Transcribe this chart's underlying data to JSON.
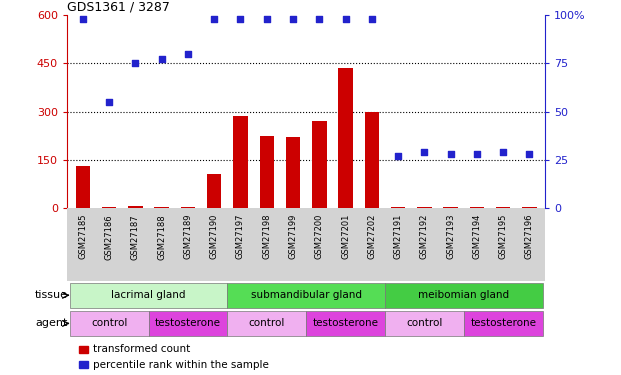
{
  "title": "GDS1361 / 3287",
  "samples": [
    "GSM27185",
    "GSM27186",
    "GSM27187",
    "GSM27188",
    "GSM27189",
    "GSM27190",
    "GSM27197",
    "GSM27198",
    "GSM27199",
    "GSM27200",
    "GSM27201",
    "GSM27202",
    "GSM27191",
    "GSM27192",
    "GSM27193",
    "GSM27194",
    "GSM27195",
    "GSM27196"
  ],
  "bar_values": [
    130,
    5,
    8,
    3,
    3,
    105,
    285,
    225,
    220,
    270,
    435,
    300,
    5,
    5,
    5,
    5,
    5,
    5
  ],
  "scatter_values": [
    98,
    55,
    75,
    77,
    80,
    98,
    98,
    98,
    98,
    98,
    98,
    98,
    27,
    29,
    28,
    28,
    29,
    28
  ],
  "bar_color": "#cc0000",
  "scatter_color": "#2222cc",
  "ylim_left": [
    0,
    600
  ],
  "ylim_right": [
    0,
    100
  ],
  "yticks_left": [
    0,
    150,
    300,
    450,
    600
  ],
  "yticks_right": [
    0,
    25,
    50,
    75,
    100
  ],
  "ytick_labels_right": [
    "0",
    "25",
    "50",
    "75",
    "100%"
  ],
  "tissue_groups": [
    {
      "label": "lacrimal gland",
      "start": 0,
      "end": 6,
      "color": "#c8f5c8"
    },
    {
      "label": "submandibular gland",
      "start": 6,
      "end": 12,
      "color": "#55dd55"
    },
    {
      "label": "meibomian gland",
      "start": 12,
      "end": 18,
      "color": "#44cc44"
    }
  ],
  "agent_groups": [
    {
      "label": "control",
      "start": 0,
      "end": 3,
      "color": "#f0b0f0"
    },
    {
      "label": "testosterone",
      "start": 3,
      "end": 6,
      "color": "#dd44dd"
    },
    {
      "label": "control",
      "start": 6,
      "end": 9,
      "color": "#f0b0f0"
    },
    {
      "label": "testosterone",
      "start": 9,
      "end": 12,
      "color": "#dd44dd"
    },
    {
      "label": "control",
      "start": 12,
      "end": 15,
      "color": "#f0b0f0"
    },
    {
      "label": "testosterone",
      "start": 15,
      "end": 18,
      "color": "#dd44dd"
    }
  ],
  "legend_items": [
    {
      "label": "transformed count",
      "color": "#cc0000"
    },
    {
      "label": "percentile rank within the sample",
      "color": "#2222cc"
    }
  ],
  "bg_color": "#ffffff",
  "sample_bg_color": "#d3d3d3",
  "axis_color_left": "#cc0000",
  "axis_color_right": "#2222cc",
  "tissue_row_label": "tissue",
  "agent_row_label": "agent"
}
